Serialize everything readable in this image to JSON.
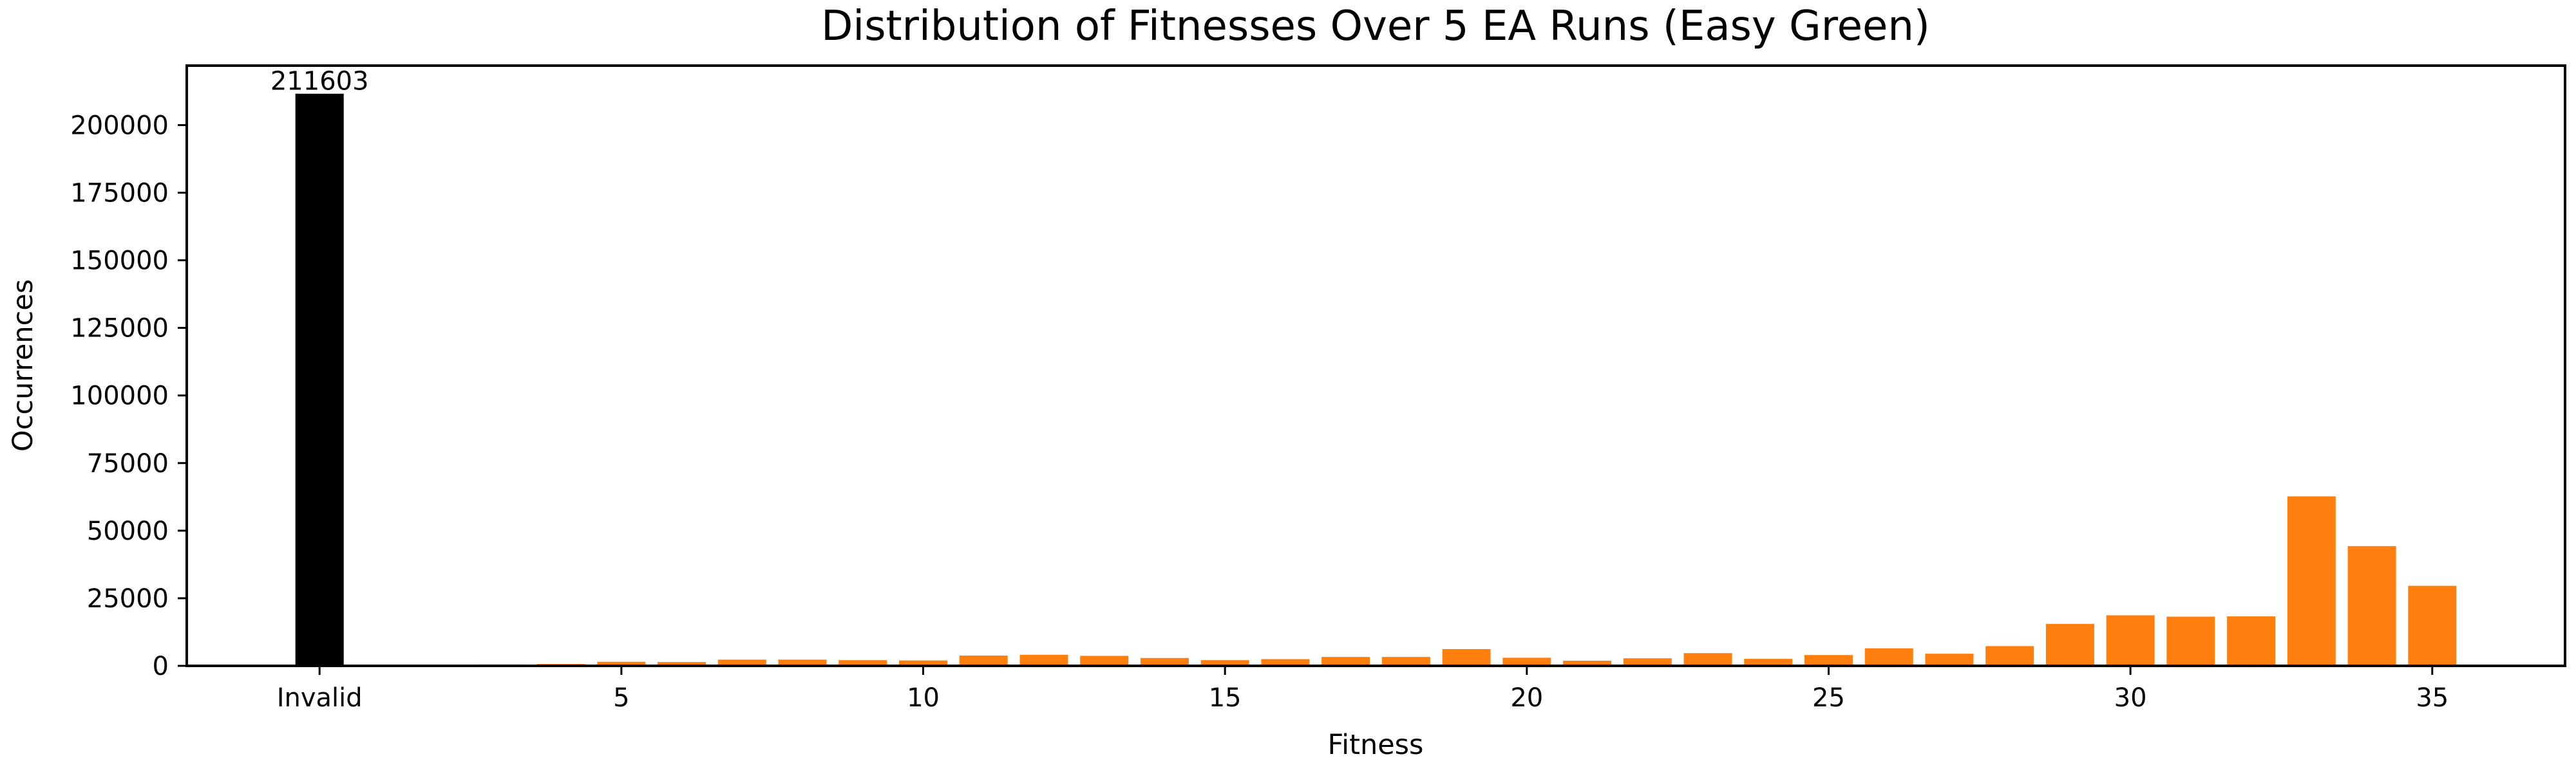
{
  "chart_data": {
    "type": "bar",
    "title": "Distribution of Fitnesses Over 5 EA Runs (Easy Green)",
    "xlabel": "Fitness",
    "ylabel": "Occurrences",
    "ylim": [
      0,
      222000
    ],
    "xlim": [
      -2.2,
      37.2
    ],
    "yticks": [
      0,
      25000,
      50000,
      75000,
      100000,
      125000,
      150000,
      175000,
      200000
    ],
    "xticks": [
      {
        "x": 0,
        "label": "Invalid"
      },
      {
        "x": 5,
        "label": "5"
      },
      {
        "x": 10,
        "label": "10"
      },
      {
        "x": 15,
        "label": "15"
      },
      {
        "x": 20,
        "label": "20"
      },
      {
        "x": 25,
        "label": "25"
      },
      {
        "x": 30,
        "label": "30"
      },
      {
        "x": 35,
        "label": "35"
      }
    ],
    "grid": false,
    "colors": {
      "invalid": "#000000",
      "valid": "#ff7f0e"
    },
    "series": [
      {
        "x": [
          "Invalid",
          2,
          3,
          4,
          5,
          6,
          7,
          8,
          9,
          10,
          11,
          12,
          13,
          14,
          15,
          16,
          17,
          18,
          19,
          20,
          21,
          22,
          23,
          24,
          25,
          26,
          27,
          28,
          29,
          30,
          31,
          32,
          33,
          34,
          35
        ],
        "values": [
          211603,
          300,
          500,
          700,
          1500,
          1400,
          2300,
          2300,
          2100,
          2000,
          3800,
          4100,
          3700,
          2900,
          2100,
          2500,
          3300,
          3300,
          6200,
          3000,
          1900,
          2800,
          4700,
          2600,
          4000,
          6500,
          4500,
          7300,
          15500,
          18700,
          18200,
          18300,
          62700,
          44300,
          29600
        ]
      }
    ],
    "data_labels": [
      {
        "x": "Invalid",
        "text": "211603"
      }
    ]
  }
}
